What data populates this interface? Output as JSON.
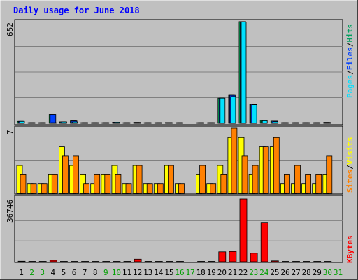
{
  "title": "Daily usage for June 2018",
  "colors": {
    "background": "#C0C0C0",
    "panel": "#C0C0C0",
    "title": "#0000FF",
    "grid": "#808080",
    "pages": "#00E0FF",
    "files": "#0040FF",
    "hits": "#00C060",
    "visits": "#FFFF00",
    "sites": "#FF8000",
    "kbytes": "#FF0000",
    "label_default": "#000000",
    "label_weekend": "#00A000"
  },
  "right_labels": {
    "top": [
      "Pages",
      "/",
      "Files",
      "/",
      "Hits"
    ],
    "middle": [
      "Sites",
      "/",
      "Visits"
    ],
    "bottom": [
      "KBytes"
    ]
  },
  "chart_data": [
    {
      "type": "bar",
      "name": "hits-files-pages",
      "y_max_label": "652",
      "ylim": [
        0,
        652
      ],
      "grid": true,
      "categories": [
        "1",
        "2",
        "3",
        "4",
        "5",
        "6",
        "7",
        "8",
        "9",
        "10",
        "11",
        "12",
        "13",
        "14",
        "15",
        "16",
        "17",
        "18",
        "19",
        "20",
        "21",
        "22",
        "23",
        "24",
        "25",
        "26",
        "27",
        "28",
        "29",
        "30",
        "31"
      ],
      "series": [
        {
          "name": "Hits",
          "values": [
            12,
            4,
            4,
            56,
            9,
            15,
            4,
            4,
            4,
            7,
            4,
            6,
            4,
            4,
            5,
            4,
            0,
            4,
            4,
            160,
            178,
            648,
            120,
            20,
            14,
            4,
            4,
            4,
            4,
            6,
            0
          ]
        },
        {
          "name": "Files",
          "values": [
            12,
            4,
            4,
            56,
            9,
            15,
            4,
            4,
            4,
            7,
            4,
            6,
            4,
            4,
            5,
            4,
            0,
            4,
            4,
            160,
            178,
            648,
            120,
            20,
            14,
            4,
            4,
            4,
            4,
            6,
            0
          ]
        },
        {
          "name": "Pages",
          "values": [
            12,
            4,
            4,
            4,
            9,
            9,
            4,
            4,
            4,
            7,
            4,
            4,
            4,
            4,
            4,
            4,
            0,
            4,
            4,
            160,
            170,
            645,
            118,
            16,
            10,
            4,
            4,
            4,
            4,
            4,
            0
          ]
        }
      ]
    },
    {
      "type": "bar",
      "name": "visits-sites",
      "y_max_label": "7",
      "ylim": [
        0,
        7
      ],
      "grid": true,
      "categories": [
        "1",
        "2",
        "3",
        "4",
        "5",
        "6",
        "7",
        "8",
        "9",
        "10",
        "11",
        "12",
        "13",
        "14",
        "15",
        "16",
        "17",
        "18",
        "19",
        "20",
        "21",
        "22",
        "23",
        "24",
        "25",
        "26",
        "27",
        "28",
        "29",
        "30",
        "31"
      ],
      "series": [
        {
          "name": "Visits",
          "values": [
            3,
            1,
            1,
            2,
            5,
            3,
            2,
            1,
            2,
            3,
            1,
            3,
            1,
            1,
            3,
            1,
            0,
            2,
            1,
            3,
            6,
            6,
            2,
            5,
            5,
            1,
            1,
            1,
            1,
            2,
            0
          ]
        },
        {
          "name": "Sites",
          "values": [
            2,
            1,
            1,
            2,
            4,
            4,
            1,
            2,
            2,
            2,
            1,
            3,
            1,
            1,
            3,
            1,
            0,
            3,
            1,
            2,
            7,
            4,
            3,
            5,
            6,
            2,
            3,
            2,
            2,
            4,
            0
          ]
        }
      ]
    },
    {
      "type": "bar",
      "name": "kbytes",
      "y_max_label": "36746",
      "ylim": [
        0,
        36746
      ],
      "grid": true,
      "categories": [
        "1",
        "2",
        "3",
        "4",
        "5",
        "6",
        "7",
        "8",
        "9",
        "10",
        "11",
        "12",
        "13",
        "14",
        "15",
        "16",
        "17",
        "18",
        "19",
        "20",
        "21",
        "22",
        "23",
        "24",
        "25",
        "26",
        "27",
        "28",
        "29",
        "30",
        "31"
      ],
      "series": [
        {
          "name": "KBytes",
          "values": [
            300,
            200,
            200,
            800,
            200,
            200,
            200,
            200,
            200,
            200,
            200,
            1500,
            200,
            200,
            200,
            200,
            0,
            200,
            200,
            5800,
            6000,
            36746,
            5000,
            23000,
            500,
            200,
            200,
            200,
            200,
            200,
            0
          ]
        }
      ]
    }
  ],
  "x_axis": {
    "labels": [
      "1",
      "2",
      "3",
      "4",
      "5",
      "6",
      "7",
      "8",
      "9",
      "10",
      "11",
      "12",
      "13",
      "14",
      "15",
      "16",
      "17",
      "18",
      "19",
      "20",
      "21",
      "22",
      "23",
      "24",
      "25",
      "26",
      "27",
      "28",
      "29",
      "30",
      "31"
    ],
    "weekend": [
      false,
      true,
      true,
      false,
      false,
      false,
      false,
      false,
      true,
      true,
      false,
      false,
      false,
      false,
      false,
      true,
      true,
      false,
      false,
      false,
      false,
      false,
      true,
      true,
      false,
      false,
      false,
      false,
      false,
      true,
      true
    ]
  }
}
